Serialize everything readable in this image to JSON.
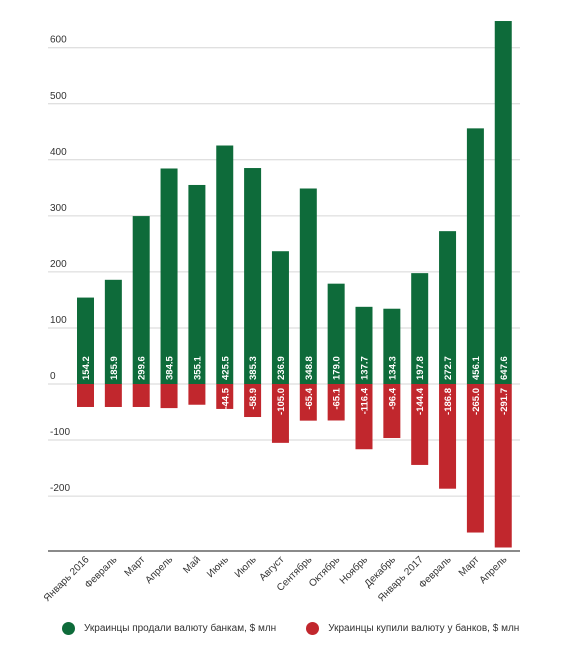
{
  "chart_data": {
    "type": "bar",
    "categories": [
      "Январь 2016",
      "Февраль",
      "Март",
      "Апрель",
      "Май",
      "Июнь",
      "Июль",
      "Август",
      "Сентябрь",
      "Октябрь",
      "Ноябрь",
      "Декабрь",
      "Январь 2017",
      "Февраль",
      "Март",
      "Апрель"
    ],
    "series": [
      {
        "name": "Украинцы продали валюту банкам, $ млн",
        "color": "#0e6b3a",
        "values": [
          154.2,
          185.9,
          299.6,
          384.5,
          355.1,
          425.5,
          385.3,
          236.9,
          348.8,
          179.0,
          137.7,
          134.3,
          197.8,
          272.7,
          456.1,
          647.6
        ],
        "labels": [
          "154.2",
          "185.9",
          "299.6",
          "384.5",
          "355.1",
          "425.5",
          "385.3",
          "236.9",
          "348.8",
          "179.0",
          "137.7",
          "134.3",
          "197.8",
          "272.7",
          "456.1",
          "647.6"
        ]
      },
      {
        "name": "Украинцы купили валюту у банков, $ млн",
        "color": "#c1272d",
        "values": [
          -41.0,
          -41.0,
          -41.0,
          -43.0,
          -37.0,
          -44.5,
          -58.9,
          -105.0,
          -65.4,
          -65.1,
          -116.4,
          -96.4,
          -144.4,
          -186.8,
          -265.0,
          -291.7
        ],
        "labels": [
          "",
          "",
          "",
          "",
          "",
          "-44.5",
          "-58.9",
          "-105.0",
          "-65.4",
          "-65.1",
          "-116.4",
          "-96.4",
          "-144.4",
          "-186.8",
          "-265.0",
          "-291.7"
        ]
      }
    ],
    "yticks": [
      -200,
      -100,
      0,
      100,
      200,
      300,
      400,
      500,
      600
    ],
    "ylim": [
      -300,
      650
    ],
    "grid": true,
    "legend_position": "bottom"
  }
}
